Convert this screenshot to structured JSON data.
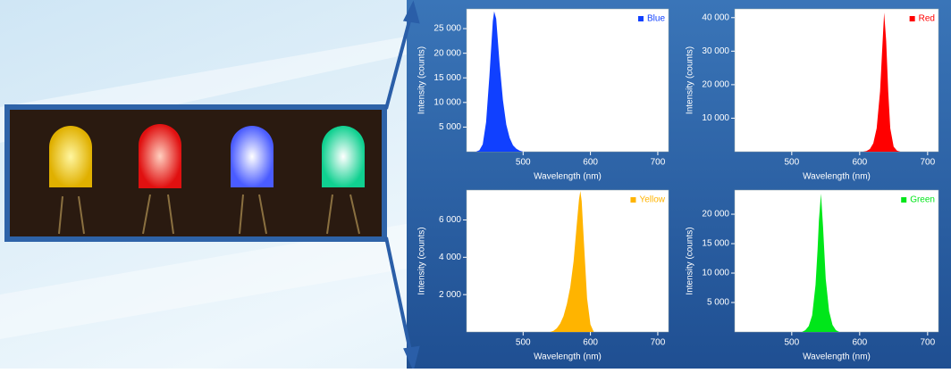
{
  "chart_data": [
    {
      "type": "area",
      "xlabel": "Wavelength (nm)",
      "ylabel": "Intensity (counts)",
      "xlim": [
        416,
        716
      ],
      "ylim": [
        0,
        29000
      ],
      "xticks": [
        500,
        600,
        700
      ],
      "yticks": [
        {
          "value": 5000,
          "label": "5 000"
        },
        {
          "value": 10000,
          "label": "10 000"
        },
        {
          "value": 15000,
          "label": "15 000"
        },
        {
          "value": 20000,
          "label": "20 000"
        },
        {
          "value": 25000,
          "label": "25 000"
        }
      ],
      "x": [
        430,
        435,
        440,
        445,
        450,
        455,
        457,
        460,
        465,
        470,
        475,
        480,
        485,
        490,
        495,
        500
      ],
      "series": [
        {
          "name": "Blue",
          "color": "#1040ff",
          "values": [
            0,
            300,
            1500,
            6000,
            15500,
            26500,
            28500,
            27000,
            18000,
            10500,
            5500,
            2800,
            1300,
            600,
            200,
            0
          ]
        }
      ]
    },
    {
      "type": "area",
      "xlabel": "Wavelength (nm)",
      "ylabel": "Intensity (counts)",
      "xlim": [
        416,
        716
      ],
      "ylim": [
        0,
        42600
      ],
      "xticks": [
        500,
        600,
        700
      ],
      "yticks": [
        {
          "value": 10000,
          "label": "10 000"
        },
        {
          "value": 20000,
          "label": "20 000"
        },
        {
          "value": 30000,
          "label": "30 000"
        },
        {
          "value": 40000,
          "label": "40 000"
        }
      ],
      "x": [
        605,
        610,
        615,
        620,
        625,
        630,
        633,
        636,
        639,
        642,
        645,
        650,
        655,
        660
      ],
      "series": [
        {
          "name": "Red",
          "color": "#ff0000",
          "values": [
            0,
            200,
            800,
            2500,
            7000,
            18000,
            30000,
            41500,
            33000,
            18000,
            7000,
            1500,
            300,
            0
          ]
        }
      ]
    },
    {
      "type": "area",
      "xlabel": "Wavelength (nm)",
      "ylabel": "Intensity (counts)",
      "xlim": [
        416,
        716
      ],
      "ylim": [
        0,
        7600
      ],
      "xticks": [
        500,
        600,
        700
      ],
      "yticks": [
        {
          "value": 2000,
          "label": "2 000"
        },
        {
          "value": 4000,
          "label": "4 000"
        },
        {
          "value": 6000,
          "label": "6 000"
        }
      ],
      "x": [
        540,
        545,
        550,
        555,
        560,
        565,
        570,
        575,
        580,
        583,
        585,
        587,
        590,
        595,
        600,
        605
      ],
      "series": [
        {
          "name": "Yellow",
          "color": "#ffb400",
          "values": [
            0,
            60,
            200,
            450,
            850,
            1500,
            2400,
            3800,
            5900,
            7100,
            7550,
            7000,
            5000,
            1800,
            400,
            0
          ]
        }
      ]
    },
    {
      "type": "area",
      "xlabel": "Wavelength (nm)",
      "ylabel": "Intensity (counts)",
      "xlim": [
        416,
        716
      ],
      "ylim": [
        0,
        24100
      ],
      "xticks": [
        500,
        600,
        700
      ],
      "yticks": [
        {
          "value": 5000,
          "label": "5 000"
        },
        {
          "value": 10000,
          "label": "10 000"
        },
        {
          "value": 15000,
          "label": "15 000"
        },
        {
          "value": 20000,
          "label": "20 000"
        }
      ],
      "x": [
        515,
        520,
        525,
        530,
        535,
        538,
        540,
        543,
        546,
        550,
        555,
        560,
        565,
        570
      ],
      "series": [
        {
          "name": "Green",
          "color": "#00e61a",
          "values": [
            0,
            300,
            1000,
            2800,
            8000,
            14000,
            19000,
            23500,
            18000,
            9000,
            3500,
            1200,
            300,
            0
          ]
        }
      ]
    }
  ]
}
